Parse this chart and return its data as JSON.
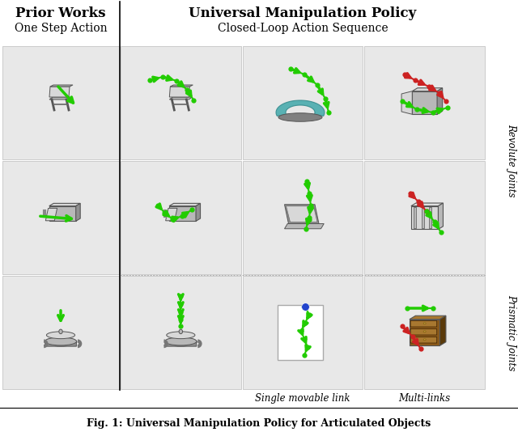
{
  "title_left_bold": "Prior Works",
  "title_left_sub": "One Step Action",
  "title_right_bold": "Universal Manipulation Policy",
  "title_right_sub": "Closed-Loop Action Sequence",
  "caption": "Fig. 1: Universal Manipulation Policy for Articulated Objects",
  "right_label_top": "Revolute Joints",
  "right_label_bottom": "Prismatic Joints",
  "bottom_label_left": "Single movable link",
  "bottom_label_right": "Multi-links",
  "bg_color": "#ffffff",
  "fig_width": 6.4,
  "fig_height": 5.34,
  "green": "#22cc00",
  "red": "#cc2222",
  "blue": "#2244cc",
  "obj_gray": "#b8b8b8",
  "obj_gray_dark": "#909090",
  "obj_gray_light": "#d8d8d8",
  "obj_brown": "#8B5A1A",
  "obj_brown_light": "#A87830",
  "cyan": "#40a8aa",
  "font_family": "DejaVu Serif"
}
